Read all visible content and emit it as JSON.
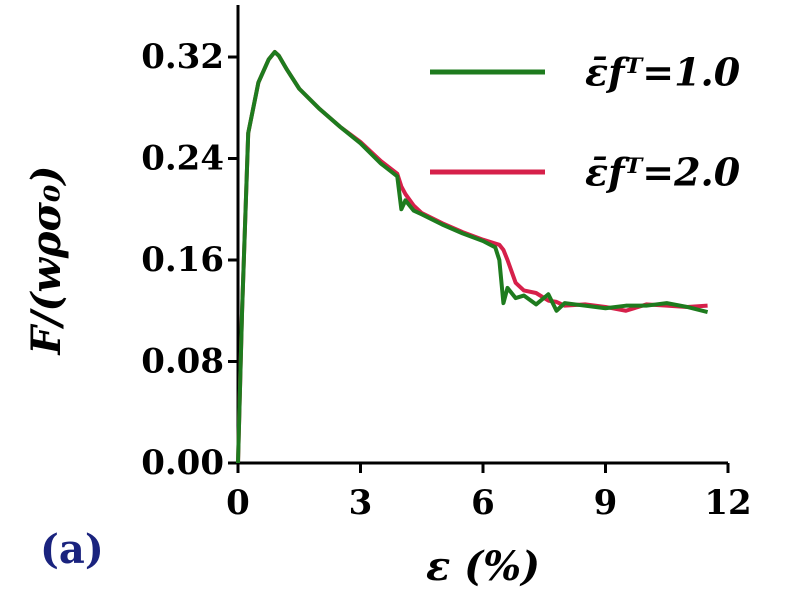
{
  "chart_data": {
    "type": "line",
    "x_label": "ε (%)",
    "y_label": "F/(wρσ₀)",
    "panel_label": "(a)",
    "x": [
      0,
      0.1,
      0.25,
      0.5,
      0.75,
      0.9,
      1.0,
      1.2,
      1.5,
      2.0,
      2.5,
      3.0,
      3.5,
      3.9,
      4.0,
      4.1,
      4.3,
      4.5,
      5.0,
      5.5,
      6.0,
      6.3,
      6.4,
      6.5,
      6.6,
      6.8,
      7.0,
      7.3,
      7.6,
      7.8,
      8.0,
      8.5,
      9.0,
      9.5,
      10.0,
      10.5,
      11.0,
      11.5
    ],
    "series": [
      {
        "name": "ε̄fᵀ=1.0",
        "color": "#1e7b1e",
        "values": [
          0,
          0.12,
          0.26,
          0.3,
          0.318,
          0.324,
          0.321,
          0.31,
          0.295,
          0.279,
          0.265,
          0.252,
          0.236,
          0.226,
          0.2,
          0.207,
          0.199,
          0.196,
          0.188,
          0.181,
          0.175,
          0.17,
          0.16,
          0.126,
          0.138,
          0.13,
          0.132,
          0.125,
          0.133,
          0.12,
          0.126,
          0.124,
          0.122,
          0.124,
          0.124,
          0.126,
          0.123,
          0.119
        ]
      },
      {
        "name": "ε̄fᵀ=2.0",
        "color": "#d6204a",
        "values": [
          0,
          0.12,
          0.26,
          0.3,
          0.318,
          0.324,
          0.321,
          0.31,
          0.295,
          0.279,
          0.265,
          0.253,
          0.238,
          0.228,
          0.218,
          0.212,
          0.203,
          0.197,
          0.189,
          0.182,
          0.176,
          0.173,
          0.172,
          0.168,
          0.16,
          0.142,
          0.136,
          0.134,
          0.128,
          0.127,
          0.124,
          0.125,
          0.123,
          0.12,
          0.125,
          0.124,
          0.123,
          0.124
        ]
      }
    ],
    "xlim": [
      0,
      12
    ],
    "xticks": [
      0,
      3,
      6,
      9,
      12
    ],
    "ylim": [
      0,
      0.361
    ],
    "yticks": [
      {
        "value": 0,
        "label": "0.00"
      },
      {
        "value": 0.08,
        "label": "0.08"
      },
      {
        "value": 0.16,
        "label": "0.16"
      },
      {
        "value": 0.24,
        "label": "0.24"
      },
      {
        "value": 0.32,
        "label": "0.32"
      }
    ],
    "legend": "upper right"
  }
}
